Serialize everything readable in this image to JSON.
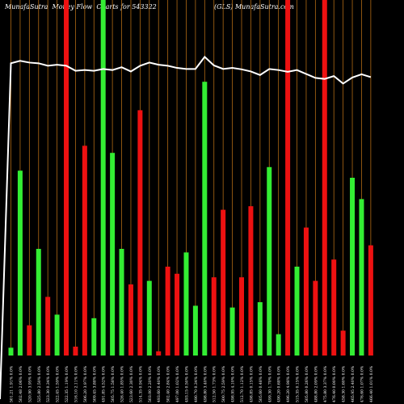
{
  "header": {
    "left": "MunafaSutra  Money Flow  Charts for 543322",
    "right": "(GLS) MunafaSutra.com"
  },
  "colors": {
    "background": "#000000",
    "up": "#33ee33",
    "down": "#ee1111",
    "grid": "#b06a14",
    "line": "#ffffff",
    "label": "#ffffff"
  },
  "chart_data": {
    "type": "bar",
    "ylim": [
      0,
      100
    ],
    "bars": [
      {
        "label": "501.21 1.91% 0.0%",
        "color": "up",
        "value": 2.2
      },
      {
        "label": "502.48 2.06% 0.0%",
        "color": "up",
        "value": 52.0
      },
      {
        "label": "520.90 3.95% 0.0%",
        "color": "down",
        "value": 8.5
      },
      {
        "label": "525.80 2.50% 0.0%",
        "color": "up",
        "value": 30.0
      },
      {
        "label": "523.30 0.34% 0.0%",
        "color": "down",
        "value": 16.5
      },
      {
        "label": "522.45 1.59% 0.0%",
        "color": "up",
        "value": 11.5
      },
      {
        "label": "522.35 1.19% 0.0%",
        "color": "down",
        "value": 100
      },
      {
        "label": "516.10 2.11% 0.0%",
        "color": "down",
        "value": 2.5
      },
      {
        "label": "506.20 3.97% 0.0%",
        "color": "down",
        "value": 59.0
      },
      {
        "label": "509.45 3.88% 0.0%",
        "color": "up",
        "value": 10.5
      },
      {
        "label": "491.85 4.52% 0.0%",
        "color": "up",
        "value": 100
      },
      {
        "label": "505.75 1.58% 0.0%",
        "color": "up",
        "value": 57.0
      },
      {
        "label": "526.40 1.85% 0.0%",
        "color": "up",
        "value": 30.0
      },
      {
        "label": "523.60 2.30% 0.0%",
        "color": "down",
        "value": 20.0
      },
      {
        "label": "514.35 0.94% 0.0%",
        "color": "down",
        "value": 69.0
      },
      {
        "label": "503.00 2.20% 0.0%",
        "color": "up",
        "value": 21.0
      },
      {
        "label": "493.60 0.40% 0.0%",
        "color": "down",
        "value": 1.2
      },
      {
        "label": "502.40 2.84% 0.0%",
        "color": "down",
        "value": 25.0
      },
      {
        "label": "497.00 1.02% 0.0%",
        "color": "down",
        "value": 23.0
      },
      {
        "label": "493.15 0.50% 0.0%",
        "color": "up",
        "value": 29.0
      },
      {
        "label": "490.70 0.34% 0.0%",
        "color": "up",
        "value": 14.0
      },
      {
        "label": "498.80 3.40% 0.0%",
        "color": "up",
        "value": 77.0
      },
      {
        "label": "512.50 1.73% 0.0%",
        "color": "down",
        "value": 22.0
      },
      {
        "label": "500.75 2.59% 0.0%",
        "color": "down",
        "value": 41.0
      },
      {
        "label": "498.95 4.10% 0.0%",
        "color": "up",
        "value": 13.5
      },
      {
        "label": "512.70 1.12% 0.0%",
        "color": "down",
        "value": 22.0
      },
      {
        "label": "498.85 0.15% 0.0%",
        "color": "down",
        "value": 42.0
      },
      {
        "label": "505.60 0.48% 0.0%",
        "color": "up",
        "value": 15.0
      },
      {
        "label": "499.30 1.70% 0.0%",
        "color": "up",
        "value": 53.0
      },
      {
        "label": "490.20 0.68% 0.0%",
        "color": "up",
        "value": 6.0
      },
      {
        "label": "496.20 4.98% 0.0%",
        "color": "down",
        "value": 100
      },
      {
        "label": "515.35 0.15% 0.0%",
        "color": "up",
        "value": 25.0
      },
      {
        "label": "505.80 0.26% 0.0%",
        "color": "down",
        "value": 36.0
      },
      {
        "label": "488.80 2.09% 0.0%",
        "color": "down",
        "value": 21.0
      },
      {
        "label": "475.80 3.37% 0.0%",
        "color": "down",
        "value": 100
      },
      {
        "label": "476.40 0.00% 0.0%",
        "color": "down",
        "value": 27.0
      },
      {
        "label": "458.30 1.60% 0.0%",
        "color": "down",
        "value": 7.0
      },
      {
        "label": "465.95 2.40% 0.0%",
        "color": "up",
        "value": 50.0
      },
      {
        "label": "476.60 1.07% 0.0%",
        "color": "up",
        "value": 44.0
      },
      {
        "label": "466.40 1.01% 0.0%",
        "color": "down",
        "value": 31.0
      }
    ],
    "line": [
      82.2,
      82.9,
      82.4,
      82.2,
      81.5,
      81.8,
      81.5,
      80.1,
      80.3,
      80.1,
      80.6,
      80.3,
      81.1,
      79.9,
      81.5,
      82.4,
      81.8,
      81.5,
      80.9,
      80.6,
      80.6,
      84.0,
      81.6,
      80.6,
      80.9,
      80.5,
      79.9,
      78.9,
      80.6,
      80.3,
      79.8,
      80.3,
      79.2,
      78.1,
      77.8,
      78.6,
      76.5,
      78.2,
      79.1,
      78.3
    ]
  }
}
